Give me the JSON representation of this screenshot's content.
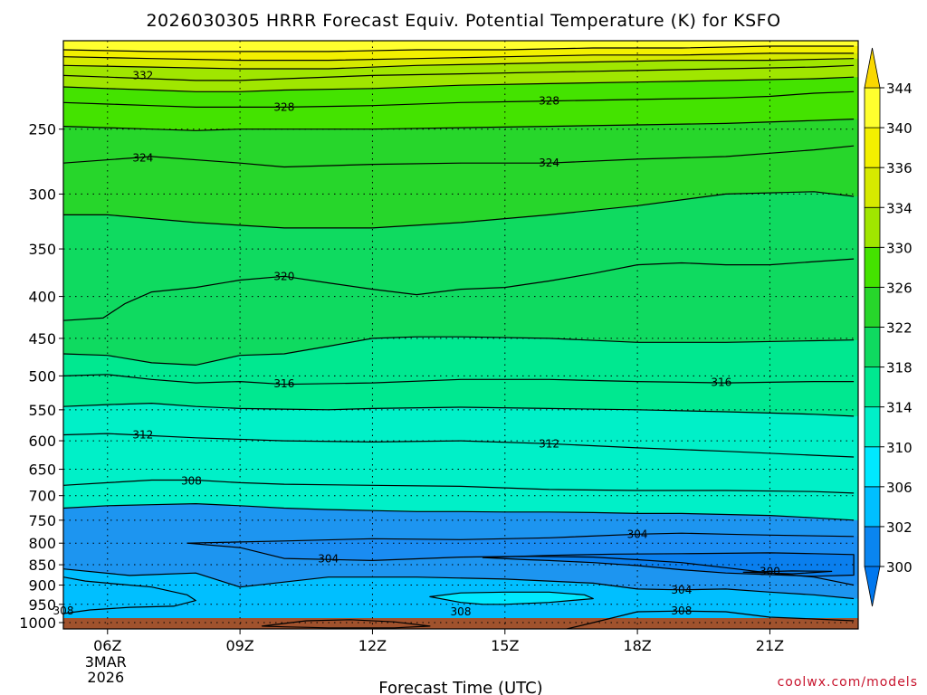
{
  "chart_data": {
    "type": "contour",
    "title": "2026030305 HRRR Forecast Equiv. Potential Temperature (K) for KSFO",
    "xlabel": "Forecast Time (UTC)",
    "ylabel": "",
    "x_ticks": [
      {
        "hour": 6,
        "label": "06Z",
        "sub": [
          "3MAR",
          "2026"
        ]
      },
      {
        "hour": 9,
        "label": "09Z"
      },
      {
        "hour": 12,
        "label": "12Z"
      },
      {
        "hour": 15,
        "label": "15Z"
      },
      {
        "hour": 18,
        "label": "18Z"
      },
      {
        "hour": 21,
        "label": "21Z"
      }
    ],
    "xlim": [
      5,
      23
    ],
    "y_ticks": [
      250,
      300,
      350,
      400,
      450,
      500,
      550,
      600,
      650,
      700,
      750,
      800,
      850,
      900,
      950,
      1000
    ],
    "ylim": [
      1018,
      195
    ],
    "y_scale": "log-pressure",
    "grid": "dotted",
    "colorbar": {
      "levels": [
        300,
        302,
        306,
        310,
        314,
        318,
        322,
        326,
        330,
        334,
        336,
        340,
        344
      ],
      "colors": [
        "#0077ee",
        "#1d95f0",
        "#00bfff",
        "#00e8ff",
        "#00f0c8",
        "#00e890",
        "#0fda60",
        "#27d62b",
        "#44e300",
        "#a0e600",
        "#d6ea00",
        "#f3f000",
        "#ffff2e",
        "#fad800"
      ]
    },
    "series": [
      {
        "level": 300,
        "hours": [
          20.4,
          21.5,
          22.4,
          21.5,
          20.4
        ],
        "pressures": [
          868,
          865,
          866,
          872,
          868
        ],
        "closed": true
      },
      {
        "level": 304,
        "hours": [
          5,
          6.5,
          8,
          9,
          11,
          13,
          15,
          17,
          18,
          19,
          20,
          21,
          22,
          22.9
        ],
        "pressures": [
          860,
          876,
          870,
          905,
          880,
          880,
          885,
          895,
          910,
          912,
          910,
          918,
          925,
          935
        ]
      },
      {
        "level": 304,
        "hours": [
          7.8,
          10,
          12,
          14,
          16,
          18,
          19,
          20,
          21,
          22.9
        ],
        "pressures": [
          800,
          795,
          790,
          792,
          788,
          780,
          778,
          780,
          782,
          785
        ]
      },
      {
        "level": 304,
        "hours": [
          7.8,
          9,
          10,
          12,
          14,
          15.5,
          17,
          18,
          19,
          20,
          21,
          22,
          22.9
        ],
        "pressures": [
          800,
          810,
          835,
          840,
          832,
          830,
          832,
          838,
          845,
          857,
          870,
          880,
          900
        ]
      },
      {
        "level": 304,
        "hours": [
          14.5,
          16,
          17.5,
          19,
          20,
          21,
          22,
          22.9,
          22.9,
          22,
          21,
          20,
          19,
          18,
          17,
          16,
          15.5,
          14.5
        ],
        "pressures": [
          833,
          828,
          825,
          824,
          823,
          822,
          824,
          826,
          875,
          878,
          874,
          870,
          862,
          852,
          845,
          840,
          838,
          833
        ],
        "closed": true
      },
      {
        "level": 308,
        "hours": [
          5,
          5.6,
          6.5,
          7.5,
          8,
          7.8,
          7,
          6,
          5.5,
          5
        ],
        "pressures": [
          975,
          965,
          958,
          955,
          940,
          925,
          905,
          895,
          890,
          880
        ]
      },
      {
        "level": 308,
        "hours": [
          9.5,
          10.5,
          11.5,
          12.5,
          13.3,
          12.5,
          11,
          10,
          9.5
        ],
        "pressures": [
          1010,
          995,
          992,
          998,
          1010,
          1015,
          1015,
          1012,
          1010
        ],
        "closed": true
      },
      {
        "level": 308,
        "hours": [
          13.3,
          14,
          15,
          16,
          16.8,
          17,
          16,
          15,
          14.5,
          14,
          13.3
        ],
        "pressures": [
          930,
          920,
          918,
          918,
          925,
          935,
          945,
          950,
          950,
          945,
          930
        ],
        "closed": true
      },
      {
        "level": 308,
        "hours": [
          16.4,
          17,
          18,
          19,
          20,
          21,
          22,
          22.9
        ],
        "pressures": [
          1018,
          1000,
          970,
          968,
          970,
          985,
          990,
          995
        ]
      },
      {
        "level": 308,
        "hours": [
          5,
          6,
          7,
          8,
          9,
          10,
          12,
          14,
          16,
          18,
          20,
          22,
          22.9
        ],
        "pressures": [
          680,
          675,
          670,
          670,
          675,
          678,
          680,
          682,
          688,
          690,
          690,
          692,
          695
        ]
      },
      {
        "level": 310,
        "hours": [
          5,
          6,
          7,
          8,
          9,
          10,
          11,
          12,
          13,
          14,
          15,
          16,
          17,
          18,
          19,
          20,
          21,
          22,
          22.9
        ],
        "pressures": [
          725,
          720,
          718,
          716,
          720,
          725,
          728,
          730,
          732,
          732,
          733,
          733,
          734,
          736,
          736,
          738,
          740,
          745,
          750
        ]
      },
      {
        "level": 312,
        "hours": [
          5,
          6,
          8,
          10,
          12,
          14,
          16,
          18,
          20,
          22,
          22.9
        ],
        "pressures": [
          590,
          588,
          595,
          600,
          602,
          600,
          605,
          612,
          618,
          625,
          628
        ]
      },
      {
        "level": 314,
        "hours": [
          5,
          6,
          7,
          8,
          9,
          10,
          11,
          12,
          14,
          16,
          18,
          20,
          22,
          22.9
        ],
        "pressures": [
          545,
          542,
          540,
          545,
          548,
          549,
          550,
          548,
          546,
          548,
          550,
          553,
          557,
          560
        ]
      },
      {
        "level": 316,
        "hours": [
          5,
          6,
          7,
          8,
          9,
          10,
          12,
          14,
          16,
          18,
          20,
          22,
          22.9
        ],
        "pressures": [
          500,
          498,
          505,
          510,
          508,
          512,
          510,
          505,
          505,
          508,
          510,
          508,
          508
        ]
      },
      {
        "level": 318,
        "hours": [
          5,
          6,
          7,
          8,
          9,
          10,
          11,
          12,
          13,
          14,
          16,
          18,
          20,
          22,
          22.9
        ],
        "pressures": [
          470,
          472,
          482,
          485,
          472,
          470,
          460,
          450,
          448,
          448,
          450,
          455,
          455,
          453,
          452
        ]
      },
      {
        "level": 320,
        "hours": [
          5,
          5.9,
          6.4,
          7,
          8,
          9,
          10,
          11,
          12,
          13,
          14,
          15,
          16,
          17,
          18,
          19,
          20,
          21,
          22.9
        ],
        "pressures": [
          428,
          425,
          408,
          395,
          390,
          382,
          378,
          385,
          392,
          398,
          392,
          390,
          383,
          375,
          366,
          364,
          366,
          366,
          360
        ]
      },
      {
        "level": 322,
        "hours": [
          5,
          6,
          8,
          10,
          12,
          14,
          16,
          18,
          20,
          22,
          22.9
        ],
        "pressures": [
          318,
          318,
          325,
          330,
          330,
          325,
          318,
          310,
          300,
          298,
          302
        ]
      },
      {
        "level": 324,
        "hours": [
          5,
          7,
          9,
          10,
          12,
          14,
          16,
          18,
          20,
          22,
          22.9
        ],
        "pressures": [
          275,
          270,
          275,
          278,
          276,
          275,
          275,
          272,
          270,
          265,
          262
        ]
      },
      {
        "level": 326,
        "hours": [
          5,
          6,
          7,
          8,
          9,
          10,
          12,
          14,
          16,
          18,
          20,
          22,
          22.9
        ],
        "pressures": [
          248,
          249,
          250,
          251,
          250,
          250,
          250,
          249,
          248,
          247,
          246,
          244,
          243
        ]
      },
      {
        "level": 328,
        "hours": [
          5,
          6,
          7,
          8,
          9,
          10,
          12,
          14,
          16,
          18,
          20,
          21,
          22,
          22.9
        ],
        "pressures": [
          232,
          233,
          234,
          235,
          235,
          235,
          234,
          232,
          231,
          230,
          229,
          228,
          226,
          225
        ]
      },
      {
        "level": 330,
        "hours": [
          5,
          6,
          7,
          8,
          9,
          10,
          12,
          14,
          16,
          18,
          20,
          22,
          22.9
        ],
        "pressures": [
          222,
          223,
          224,
          225,
          225,
          224,
          223,
          221,
          220,
          219,
          218,
          217,
          216
        ]
      },
      {
        "level": 332,
        "hours": [
          5,
          6,
          7,
          8,
          9,
          10,
          12,
          14,
          16,
          18,
          20,
          22,
          22.9
        ],
        "pressures": [
          215,
          216,
          217,
          218,
          218,
          217,
          215,
          214,
          213,
          212,
          211,
          210,
          209
        ]
      },
      {
        "level": 334,
        "hours": [
          5,
          7,
          9,
          11,
          13,
          15,
          17,
          19,
          21,
          22.9
        ],
        "pressures": [
          209,
          210,
          211,
          211,
          209,
          208,
          207,
          206,
          206,
          205
        ]
      },
      {
        "level": 336,
        "hours": [
          5,
          7,
          9,
          11,
          13,
          15,
          17,
          19,
          21,
          22.9
        ],
        "pressures": [
          204,
          205,
          206,
          206,
          205,
          204,
          203,
          203,
          202,
          202
        ]
      },
      {
        "level": 338,
        "hours": [
          5,
          7,
          9,
          11,
          13,
          15,
          17,
          19,
          21,
          22.9
        ],
        "pressures": [
          200,
          201,
          201,
          201,
          200,
          200,
          199,
          199,
          198,
          198
        ]
      }
    ],
    "contour_labels": [
      {
        "text": "332",
        "hour": 6.8,
        "pressure": 215
      },
      {
        "text": "328",
        "hour": 10,
        "pressure": 235
      },
      {
        "text": "328",
        "hour": 16,
        "pressure": 231
      },
      {
        "text": "324",
        "hour": 6.8,
        "pressure": 271
      },
      {
        "text": "324",
        "hour": 16,
        "pressure": 275
      },
      {
        "text": "320",
        "hour": 10,
        "pressure": 378
      },
      {
        "text": "316",
        "hour": 10,
        "pressure": 511
      },
      {
        "text": "316",
        "hour": 19.9,
        "pressure": 509
      },
      {
        "text": "312",
        "hour": 6.8,
        "pressure": 590
      },
      {
        "text": "312",
        "hour": 16,
        "pressure": 605
      },
      {
        "text": "308",
        "hour": 7.9,
        "pressure": 672
      },
      {
        "text": "304",
        "hour": 18,
        "pressure": 780
      },
      {
        "text": "304",
        "hour": 11,
        "pressure": 836
      },
      {
        "text": "300",
        "hour": 21,
        "pressure": 866
      },
      {
        "text": "304",
        "hour": 19,
        "pressure": 912
      },
      {
        "text": "308",
        "hour": 5,
        "pressure": 968
      },
      {
        "text": "308",
        "hour": 14,
        "pressure": 970
      },
      {
        "text": "308",
        "hour": 19,
        "pressure": 968
      }
    ],
    "ground_color": "#a0522d"
  },
  "credit": "coolwx.com/models"
}
